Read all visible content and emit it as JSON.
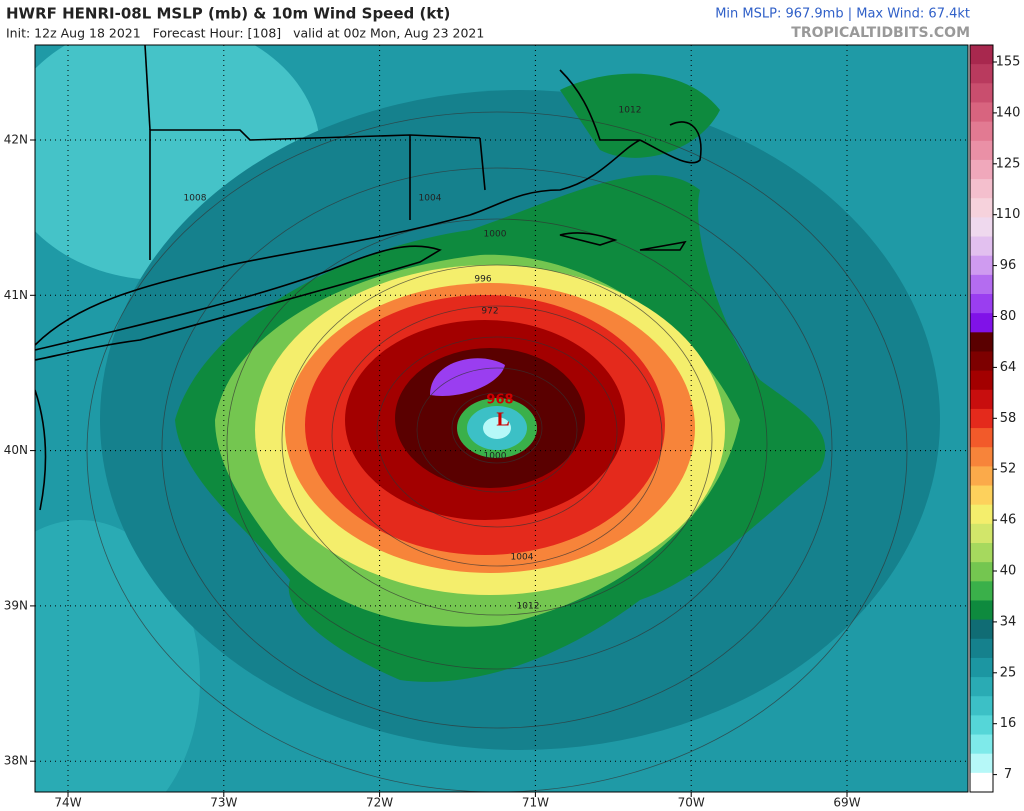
{
  "header": {
    "title": "HWRF HENRI-08L MSLP (mb) & 10m Wind Speed (kt)",
    "subtitle": "Init: 12z Aug 18 2021   Forecast Hour: [108]   valid at 00z Mon, Aug 23 2021",
    "stats": "Min MSLP: 967.9mb | Max Wind: 67.4kt",
    "source": "TROPICALTIDBITS.COM"
  },
  "map": {
    "lat_labels": [
      "42N",
      "41N",
      "40N",
      "39N",
      "38N"
    ],
    "lon_labels": [
      "74W",
      "73W",
      "72W",
      "71W",
      "70W",
      "69W"
    ],
    "isobar_labels": [
      "1012",
      "1008",
      "1004",
      "1000",
      "996",
      "972",
      "1000",
      "1004",
      "1012"
    ],
    "center_pressure": "968",
    "low_symbol": "L"
  },
  "colorbar": {
    "labels": [
      155,
      140,
      125,
      110,
      96,
      80,
      64,
      58,
      52,
      46,
      40,
      34,
      25,
      16,
      7
    ],
    "colors": [
      "#a8284e",
      "#b93a5e",
      "#c94e6e",
      "#d8647f",
      "#e27a92",
      "#ea90a6",
      "#f0a8bb",
      "#f4bfcd",
      "#f6d2dc",
      "#efd9ee",
      "#e2c0ef",
      "#cf9bf0",
      "#b46cf0",
      "#9a3ef0",
      "#8012e8",
      "#5a0000",
      "#7d0000",
      "#a30000",
      "#c80e0e",
      "#e42a1c",
      "#f25a2a",
      "#f7843a",
      "#fbaa4a",
      "#fdd15c",
      "#f4ee6c",
      "#d2e66a",
      "#a6d95e",
      "#74c650",
      "#3ab04a",
      "#0e8a3e",
      "#106c74",
      "#15818d",
      "#1c96a2",
      "#2aabb4",
      "#3cc0c6",
      "#55d6d8",
      "#7eeaea",
      "#b6f8f8",
      "#ffffff"
    ]
  }
}
